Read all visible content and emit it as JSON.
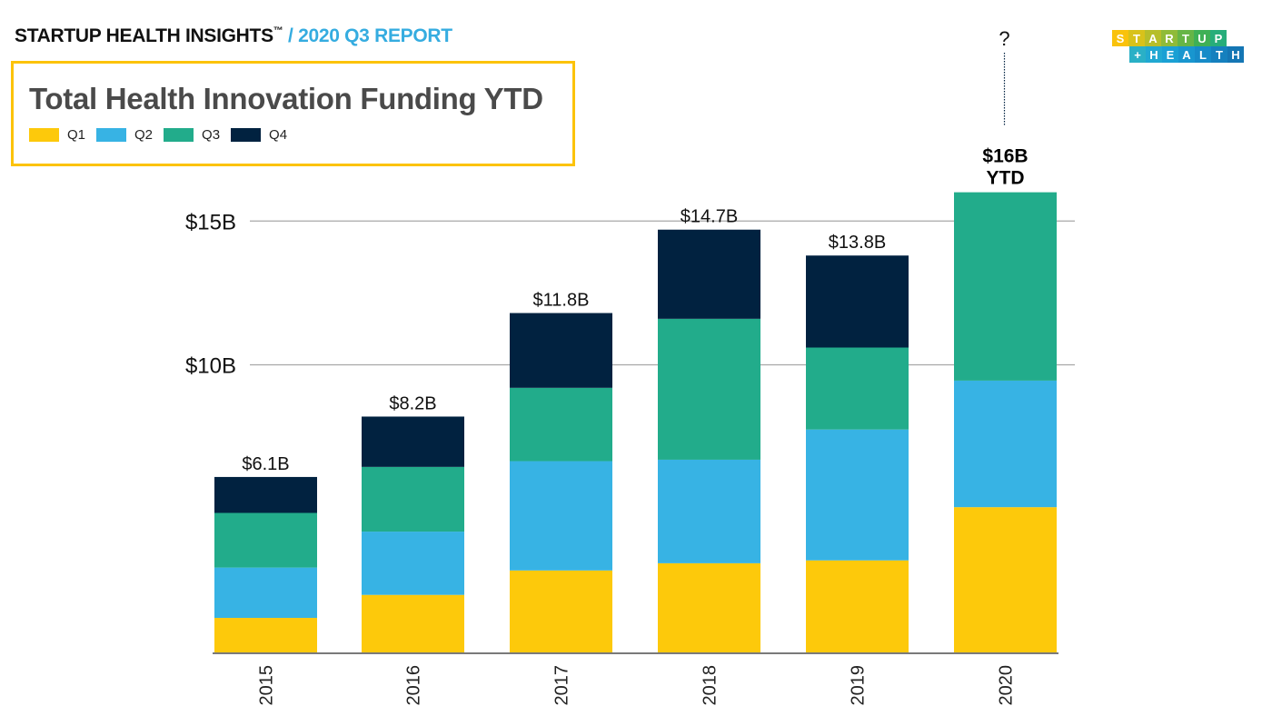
{
  "header": {
    "brand": "STARTUP HEALTH INSIGHTS",
    "trademark": "™",
    "report": " / 2020 Q3 REPORT"
  },
  "logo": {
    "row1": [
      "S",
      "T",
      "A",
      "R",
      "T",
      "U",
      "P"
    ],
    "row2": [
      "+",
      "H",
      "E",
      "A",
      "L",
      "T",
      "H"
    ],
    "row1_colors": [
      "#f9c20c",
      "#d8c21a",
      "#b6be2a",
      "#8fbb38",
      "#66b546",
      "#3fb055",
      "#27ad7a"
    ],
    "row2_colors": [
      "#2ab0c6",
      "#20a8d2",
      "#1aa0d4",
      "#1896cf",
      "#168bc8",
      "#1580be",
      "#1476b4"
    ]
  },
  "colors": {
    "Q1": "#fdc90b",
    "Q2": "#37b3e4",
    "Q3": "#22ac8b",
    "Q4": "#012240",
    "title_border": "#fcc30a",
    "accent": "#35ace0"
  },
  "chart_data": {
    "type": "bar",
    "stacked": true,
    "title": "Total Health Innovation Funding YTD",
    "xlabel": "",
    "ylabel": "",
    "categories": [
      "2015",
      "2016",
      "2017",
      "2018",
      "2019",
      "2020"
    ],
    "series": [
      {
        "name": "Q1",
        "values": [
          1.2,
          2.0,
          2.85,
          3.1,
          3.2,
          5.05
        ]
      },
      {
        "name": "Q2",
        "values": [
          1.75,
          2.2,
          3.8,
          3.6,
          4.55,
          4.4
        ]
      },
      {
        "name": "Q3",
        "values": [
          1.9,
          2.25,
          2.55,
          4.9,
          2.85,
          6.55
        ]
      },
      {
        "name": "Q4",
        "values": [
          1.25,
          1.75,
          2.6,
          3.1,
          3.2,
          null
        ]
      }
    ],
    "totals_labels": [
      "$6.1B",
      "$8.2B",
      "$11.8B",
      "$14.7B",
      "$13.8B",
      "$16B"
    ],
    "totals": [
      6.1,
      8.2,
      11.8,
      14.7,
      13.8,
      16.0
    ],
    "highlight_label_suffix": "YTD",
    "pending_quarter_label": "?",
    "yticks": [
      10,
      15
    ],
    "ytick_labels": [
      "$10B",
      "$15B"
    ],
    "ylim": [
      0,
      16.5
    ],
    "grid": true,
    "legend": [
      "Q1",
      "Q2",
      "Q3",
      "Q4"
    ],
    "legend_position": "top-left"
  }
}
